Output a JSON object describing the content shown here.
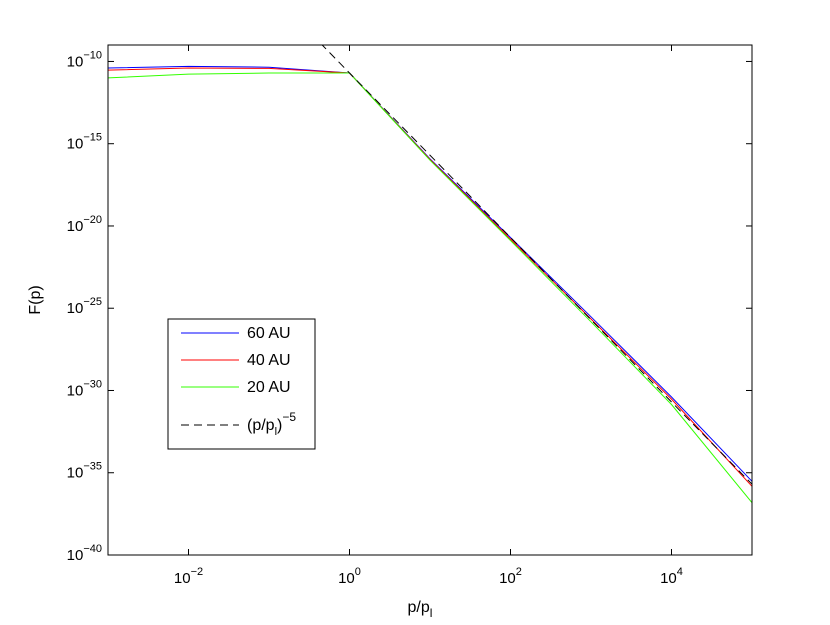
{
  "chart_data": {
    "type": "line",
    "title": "",
    "xlabel": "p/p",
    "xlabel_sub": "l",
    "ylabel": "F(p)",
    "xscale": "log",
    "yscale": "log",
    "xlim": [
      0.001,
      100000
    ],
    "ylim": [
      1e-40,
      1e-09
    ],
    "x_ticks": [
      {
        "base": "10",
        "exp": "−2",
        "value": 0.01
      },
      {
        "base": "10",
        "exp": "0",
        "value": 1
      },
      {
        "base": "10",
        "exp": "2",
        "value": 100
      },
      {
        "base": "10",
        "exp": "4",
        "value": 10000
      }
    ],
    "y_ticks": [
      {
        "base": "10",
        "exp": "−10",
        "value": 1e-10
      },
      {
        "base": "10",
        "exp": "−15",
        "value": 1e-15
      },
      {
        "base": "10",
        "exp": "−20",
        "value": 1e-20
      },
      {
        "base": "10",
        "exp": "−25",
        "value": 1e-25
      },
      {
        "base": "10",
        "exp": "−30",
        "value": 1e-30
      },
      {
        "base": "10",
        "exp": "−35",
        "value": 1e-35
      },
      {
        "base": "10",
        "exp": "−40",
        "value": 1e-40
      }
    ],
    "grid": false,
    "legend_position": "left-middle",
    "series": [
      {
        "name": "60 AU",
        "color": "#0000ff",
        "dash": false,
        "x": [
          0.001,
          0.01,
          0.1,
          1,
          10,
          100,
          1000,
          10000,
          100000
        ],
        "y": [
          4e-11,
          5e-11,
          4.5e-11,
          2e-11,
          1.2e-16,
          2e-21,
          3e-26,
          4e-31,
          3e-36
        ]
      },
      {
        "name": "40 AU",
        "color": "#ff0000",
        "dash": false,
        "x": [
          0.001,
          0.01,
          0.1,
          1,
          10,
          100,
          1000,
          10000,
          100000
        ],
        "y": [
          3e-11,
          4e-11,
          3.8e-11,
          2e-11,
          1.1e-16,
          1.6e-21,
          2.2e-26,
          3e-31,
          1.5e-36
        ]
      },
      {
        "name": "20 AU",
        "color": "#33ff00",
        "dash": false,
        "x": [
          0.001,
          0.01,
          0.1,
          1,
          10,
          100,
          1000,
          10000,
          100000
        ],
        "y": [
          1e-11,
          1.7e-11,
          2e-11,
          2e-11,
          1e-16,
          1.3e-21,
          1.5e-26,
          1.4e-31,
          1.5e-37
        ]
      },
      {
        "name": "(p/p",
        "name_sub": "l",
        "name_sup": ")−5",
        "color": "#000000",
        "dash": true,
        "x": [
          0.2,
          1,
          100000
        ],
        "y": [
          6.4e-08,
          2e-11,
          2e-36
        ]
      }
    ]
  }
}
